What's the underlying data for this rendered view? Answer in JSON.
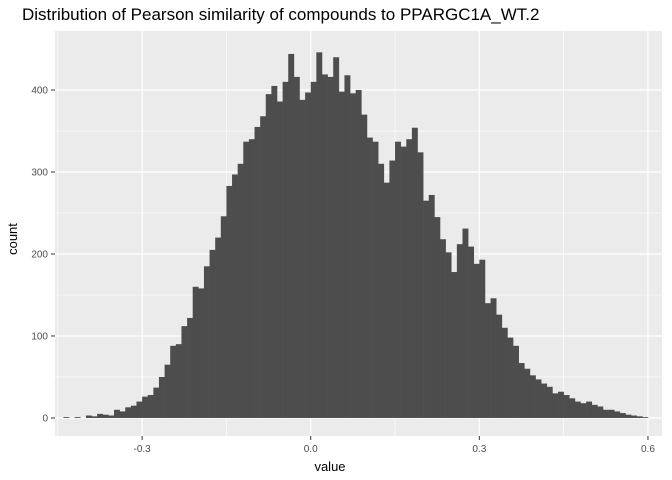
{
  "chart_data": {
    "type": "bar",
    "title": "Distribution of Pearson similarity of compounds to PPARGC1A_WT.2",
    "xlabel": "value",
    "ylabel": "count",
    "xlim": [
      -0.455,
      0.625
    ],
    "ylim": [
      -22,
      472
    ],
    "x_ticks": [
      -0.3,
      0.0,
      0.3,
      0.6
    ],
    "x_tick_labels": [
      "-0.3",
      "0.0",
      "0.3",
      "0.6"
    ],
    "y_ticks": [
      0,
      100,
      200,
      300,
      400
    ],
    "y_tick_labels": [
      "0",
      "100",
      "200",
      "300",
      "400"
    ],
    "grid": true,
    "bin_width": 0.01,
    "bin_starts": [
      -0.45,
      -0.44,
      -0.43,
      -0.42,
      -0.41,
      -0.4,
      -0.39,
      -0.38,
      -0.37,
      -0.36,
      -0.35,
      -0.34,
      -0.33,
      -0.32,
      -0.31,
      -0.3,
      -0.29,
      -0.28,
      -0.27,
      -0.26,
      -0.25,
      -0.24,
      -0.23,
      -0.22,
      -0.21,
      -0.2,
      -0.19,
      -0.18,
      -0.17,
      -0.16,
      -0.15,
      -0.14,
      -0.13,
      -0.12,
      -0.11,
      -0.1,
      -0.09,
      -0.08,
      -0.07,
      -0.06,
      -0.05,
      -0.04,
      -0.03,
      -0.02,
      -0.01,
      0.0,
      0.01,
      0.02,
      0.03,
      0.04,
      0.05,
      0.06,
      0.07,
      0.08,
      0.09,
      0.1,
      0.11,
      0.12,
      0.13,
      0.14,
      0.15,
      0.16,
      0.17,
      0.18,
      0.19,
      0.2,
      0.21,
      0.22,
      0.23,
      0.24,
      0.25,
      0.26,
      0.27,
      0.28,
      0.29,
      0.3,
      0.31,
      0.32,
      0.33,
      0.34,
      0.35,
      0.36,
      0.37,
      0.38,
      0.39,
      0.4,
      0.41,
      0.42,
      0.43,
      0.44,
      0.45,
      0.46,
      0.47,
      0.48,
      0.49,
      0.5,
      0.51,
      0.52,
      0.53,
      0.54,
      0.55,
      0.56,
      0.57,
      0.58,
      0.59
    ],
    "values": [
      0,
      1,
      0,
      1,
      0,
      3,
      2,
      5,
      4,
      3,
      10,
      8,
      13,
      15,
      20,
      26,
      28,
      37,
      50,
      65,
      88,
      90,
      112,
      122,
      160,
      158,
      185,
      205,
      220,
      246,
      283,
      297,
      310,
      337,
      340,
      355,
      368,
      395,
      405,
      386,
      410,
      444,
      416,
      388,
      397,
      410,
      446,
      419,
      416,
      440,
      398,
      418,
      396,
      400,
      370,
      342,
      337,
      310,
      287,
      314,
      337,
      331,
      340,
      354,
      324,
      265,
      272,
      245,
      218,
      202,
      178,
      212,
      231,
      209,
      188,
      193,
      140,
      146,
      126,
      110,
      98,
      88,
      67,
      60,
      52,
      47,
      42,
      38,
      30,
      32,
      28,
      24,
      20,
      18,
      20,
      16,
      14,
      10,
      10,
      8,
      6,
      4,
      3,
      2,
      1
    ],
    "bar_color": "#4d4d4d",
    "panel_color": "#ebebeb",
    "grid_color": "#ffffff"
  }
}
